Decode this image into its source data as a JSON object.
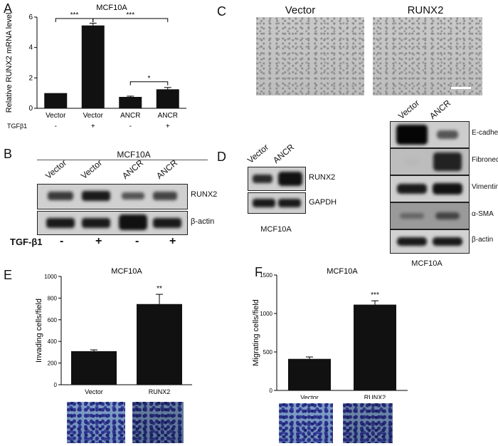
{
  "panels": {
    "A": "A",
    "B": "B",
    "C": "C",
    "D": "D",
    "E": "E",
    "F": "F"
  },
  "colors": {
    "bar": "#111111",
    "blot_bg": "#d8d8d8",
    "band": "#1a1a1a",
    "stain": "#3b47a5"
  },
  "chart_data": [
    {
      "id": "A",
      "type": "bar",
      "title": "MCF10A",
      "ylabel": "Relative RUNX2 mRNA level",
      "ylim": [
        0,
        6
      ],
      "yticks": [
        0,
        2,
        4,
        6
      ],
      "categories": [
        "Vector",
        "Vector",
        "ANCR",
        "ANCR"
      ],
      "treatment_label": "TGFβ1",
      "treatment": [
        "-",
        "+",
        "-",
        "+"
      ],
      "values": [
        1.0,
        5.45,
        0.75,
        1.25
      ],
      "errors": [
        0.0,
        0.15,
        0.05,
        0.12
      ],
      "significance": [
        {
          "from": 0,
          "to": 1,
          "label": "***"
        },
        {
          "from": 1,
          "to": 3,
          "label": "***"
        },
        {
          "from": 2,
          "to": 3,
          "label": "*"
        }
      ]
    },
    {
      "id": "E",
      "type": "bar",
      "title": "MCF10A",
      "ylabel": "Invading cells/field",
      "ylim": [
        0,
        1000
      ],
      "yticks": [
        0,
        200,
        400,
        600,
        800,
        1000
      ],
      "categories": [
        "Vector",
        "RUNX2"
      ],
      "values": [
        310,
        745
      ],
      "errors": [
        12,
        90
      ],
      "significance": [
        {
          "bar": 1,
          "label": "**"
        }
      ]
    },
    {
      "id": "F",
      "type": "bar",
      "title": "MCF10A",
      "ylabel": "Migrating cells/field",
      "ylim": [
        0,
        1500
      ],
      "yticks": [
        0,
        500,
        1000,
        1500
      ],
      "categories": [
        "Vector",
        "RUNX2"
      ],
      "values": [
        410,
        1115
      ],
      "errors": [
        25,
        50
      ],
      "significance": [
        {
          "bar": 1,
          "label": "***"
        }
      ]
    }
  ],
  "panelB": {
    "title": "MCF10A",
    "lanes": [
      "Vector",
      "Vector",
      "ANCR",
      "ANCR"
    ],
    "bands": [
      "RUNX2",
      "β-actin"
    ],
    "treatment_label": "TGF-β1",
    "treatment": [
      "-",
      "+",
      "-",
      "+"
    ]
  },
  "panelC": {
    "labels": [
      "Vector",
      "RUNX2"
    ]
  },
  "panelD": {
    "left": {
      "lanes": [
        "Vector",
        "ANCR"
      ],
      "bands": [
        "RUNX2",
        "GAPDH"
      ],
      "caption": "MCF10A"
    },
    "right": {
      "lanes": [
        "Vector",
        "ANCR"
      ],
      "bands": [
        "E-cadherin",
        "Fibronectin",
        "Vimentin",
        "α-SMA",
        "β-actin"
      ],
      "caption": "MCF10A"
    }
  }
}
